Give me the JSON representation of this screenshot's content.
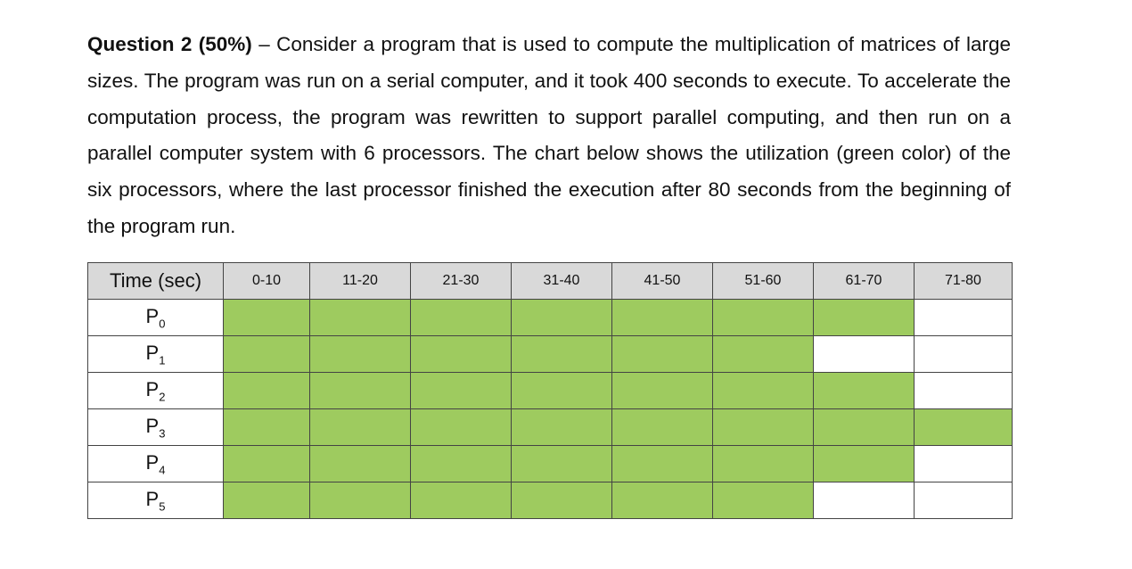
{
  "question": {
    "heading": "Question 2 (50%)",
    "text": "– Consider a program that is used to compute the multiplication of matrices of large sizes. The program was run on a serial computer, and it took 400 seconds to execute. To accelerate the computation process, the program was rewritten to support parallel computing, and then run on a parallel computer system with 6 processors. The chart below shows the utilization (green color) of the six processors, where the last processor finished the execution after 80 seconds from the beginning of the program run."
  },
  "table": {
    "header": [
      "Time (sec)",
      "0-10",
      "11-20",
      "21-30",
      "31-40",
      "41-50",
      "51-60",
      "61-70",
      "71-80"
    ],
    "busy_color": "#9ecb5f",
    "rows": [
      {
        "label": "P",
        "sub": "0",
        "busy": [
          true,
          true,
          true,
          true,
          true,
          true,
          true,
          false
        ]
      },
      {
        "label": "P",
        "sub": "1",
        "busy": [
          true,
          true,
          true,
          true,
          true,
          true,
          false,
          false
        ]
      },
      {
        "label": "P",
        "sub": "2",
        "busy": [
          true,
          true,
          true,
          true,
          true,
          true,
          true,
          false
        ]
      },
      {
        "label": "P",
        "sub": "3",
        "busy": [
          true,
          true,
          true,
          true,
          true,
          true,
          true,
          true
        ]
      },
      {
        "label": "P",
        "sub": "4",
        "busy": [
          true,
          true,
          true,
          true,
          true,
          true,
          true,
          false
        ]
      },
      {
        "label": "P",
        "sub": "5",
        "busy": [
          true,
          true,
          true,
          true,
          true,
          true,
          false,
          false
        ]
      }
    ]
  }
}
